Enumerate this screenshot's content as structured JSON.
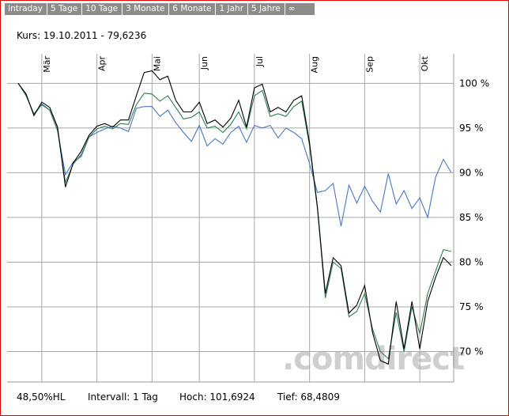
{
  "tabs": [
    "Intraday",
    "5 Tage",
    "10 Tage",
    "3 Monate",
    "6 Monate",
    "1 Jahr",
    "5 Jahre",
    "∞"
  ],
  "quote": "Kurs: 19.10.2011 - 79,6236",
  "stats": [
    "48,50%HL",
    "Intervall: 1 Tag",
    "Hoch: 101,6924",
    "Tief: 68,4809"
  ],
  "watermark": ".comdirect",
  "chart_data": {
    "type": "line",
    "categories": [
      null,
      null,
      null,
      "Mär",
      null,
      null,
      null,
      null,
      null,
      null,
      "Apr",
      null,
      null,
      null,
      null,
      null,
      null,
      "Mai",
      null,
      null,
      null,
      null,
      null,
      "Jun",
      null,
      null,
      null,
      null,
      null,
      null,
      "Jul",
      null,
      null,
      null,
      null,
      null,
      null,
      "Aug",
      null,
      null,
      null,
      null,
      null,
      null,
      "Sep",
      null,
      null,
      null,
      null,
      null,
      null,
      "Okt",
      null,
      null,
      null,
      null
    ],
    "series": [
      {
        "color": "#000000",
        "values": [
          100,
          98.8,
          96.4,
          97.9,
          97.3,
          95.1,
          88.4,
          91.1,
          92.4,
          94.2,
          95.2,
          95.5,
          95.1,
          95.9,
          95.9,
          98.6,
          101.2,
          101.4,
          100.4,
          100.8,
          98.1,
          96.8,
          96.8,
          97.9,
          95.5,
          95.9,
          95.1,
          96.1,
          98.1,
          95.1,
          99.5,
          99.9,
          96.8,
          97.3,
          96.8,
          98.1,
          98.6,
          93.3,
          86.2,
          76.5,
          80.5,
          79.6,
          74.3,
          75.2,
          77.4,
          72.1,
          69.0,
          68.6,
          75.6,
          70.3,
          75.6,
          70.3,
          75.6,
          78.3,
          80.5,
          79.6
        ]
      },
      {
        "color": "#2e7d4f",
        "values": [
          100,
          98.6,
          96.6,
          97.6,
          97.0,
          94.8,
          88.9,
          91.0,
          92.0,
          94.0,
          94.9,
          95.2,
          94.9,
          95.5,
          95.4,
          97.6,
          98.9,
          98.8,
          98.0,
          98.6,
          97.3,
          96.0,
          96.2,
          96.8,
          95.0,
          95.2,
          94.5,
          95.4,
          96.8,
          94.9,
          98.6,
          99.2,
          96.3,
          96.6,
          96.3,
          97.4,
          98.0,
          93.0,
          86.0,
          76.0,
          80.0,
          79.3,
          73.9,
          74.5,
          76.5,
          72.5,
          70.0,
          69.2,
          74.4,
          70.0,
          75.0,
          72.0,
          76.5,
          79.0,
          81.4,
          81.2
        ]
      },
      {
        "color": "#4a76c2",
        "values": [
          100,
          98.8,
          96.4,
          97.7,
          97.0,
          94.7,
          89.8,
          91.2,
          91.8,
          94.0,
          94.5,
          94.9,
          95.2,
          95.0,
          94.6,
          97.2,
          97.4,
          97.4,
          96.3,
          97.0,
          95.6,
          94.5,
          93.5,
          95.3,
          93.0,
          93.8,
          93.2,
          94.5,
          95.2,
          93.4,
          95.3,
          95.0,
          95.3,
          93.9,
          95.0,
          94.5,
          93.8,
          91.0,
          87.8,
          88.0,
          88.8,
          84.0,
          88.6,
          86.6,
          88.5,
          86.8,
          85.6,
          89.9,
          86.5,
          88.0,
          86.0,
          87.2,
          85.0,
          89.5,
          91.5,
          90.0
        ]
      }
    ],
    "ylim": [
      66.6,
      103.3
    ],
    "yticks": [
      {
        "value": 70,
        "label": "70 %"
      },
      {
        "value": 75,
        "label": "75 %"
      },
      {
        "value": 80,
        "label": "80 %"
      },
      {
        "value": 85,
        "label": "85 %"
      },
      {
        "value": 90,
        "label": "90 %"
      },
      {
        "value": 95,
        "label": "95 %"
      },
      {
        "value": 100,
        "label": "100 %"
      }
    ],
    "grid": true
  }
}
